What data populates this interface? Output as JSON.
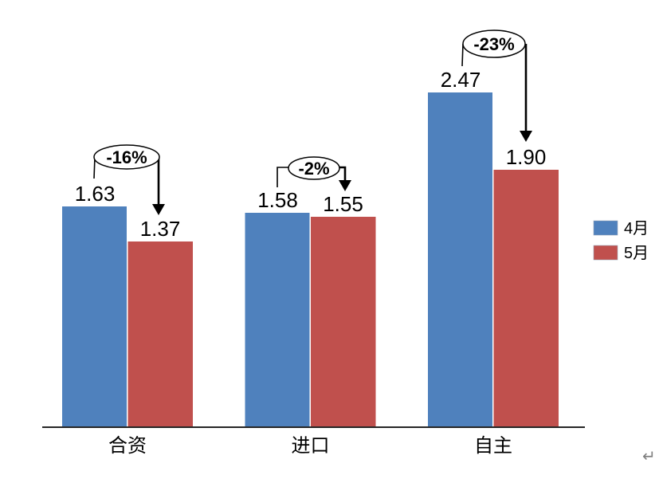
{
  "chart_data": {
    "type": "bar",
    "categories": [
      "合资",
      "进口",
      "自主"
    ],
    "series": [
      {
        "name": "4月",
        "color": "#4F81BD",
        "values": [
          1.63,
          1.58,
          2.47
        ]
      },
      {
        "name": "5月",
        "color": "#C0504D",
        "values": [
          1.37,
          1.55,
          1.9
        ]
      }
    ],
    "value_labels": [
      [
        "1.63",
        "1.58",
        "2.47"
      ],
      [
        "1.37",
        "1.55",
        "1.90"
      ]
    ],
    "annotations": [
      {
        "category": "合资",
        "label": "-16%"
      },
      {
        "category": "进口",
        "label": "-2%"
      },
      {
        "category": "自主",
        "label": "-23%"
      }
    ],
    "legend": {
      "position": "right",
      "entries": [
        {
          "label": "4月",
          "color": "#4F81BD"
        },
        {
          "label": "5月",
          "color": "#C0504D"
        }
      ]
    },
    "title": "",
    "xlabel": "",
    "ylabel": "",
    "ylim": [
      0,
      2.8
    ],
    "grid": false
  },
  "page": {
    "paragraph_mark": "↵"
  },
  "colors": {
    "april_blue": "#4F81BD",
    "may_red": "#C0504D",
    "axis": "#262626",
    "text": "#000000",
    "annotation": "#000000",
    "paragraph_mark": "#808080",
    "background": "#ffffff"
  }
}
